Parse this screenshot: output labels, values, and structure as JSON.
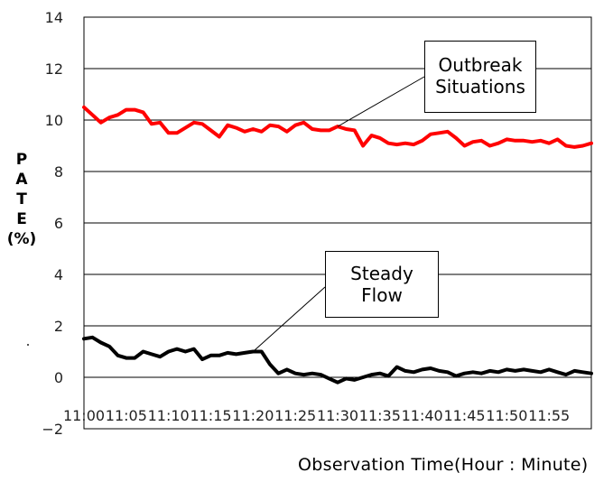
{
  "chart_data": {
    "type": "line",
    "xlabel": "Observation  Time(Hour : Minute)",
    "ylabel": [
      "P",
      "A",
      "T",
      "E",
      "(%)"
    ],
    "ylim": [
      -2,
      14
    ],
    "yticks": [
      -2,
      0,
      2,
      4,
      6,
      8,
      10,
      12,
      14
    ],
    "xlim": [
      0,
      60
    ],
    "xticks": [
      {
        "x": 0,
        "label": "11:00"
      },
      {
        "x": 5,
        "label": "11:05"
      },
      {
        "x": 10,
        "label": "11:10"
      },
      {
        "x": 15,
        "label": "11:15"
      },
      {
        "x": 20,
        "label": "11:20"
      },
      {
        "x": 25,
        "label": "11:25"
      },
      {
        "x": 30,
        "label": "11:30"
      },
      {
        "x": 35,
        "label": "11:35"
      },
      {
        "x": 40,
        "label": "11:40"
      },
      {
        "x": 45,
        "label": "11:45"
      },
      {
        "x": 50,
        "label": "11:50"
      },
      {
        "x": 55,
        "label": "11:55"
      }
    ],
    "grid": "horizontal",
    "series": [
      {
        "name": "Outbreak Situations",
        "color": "#ff0000",
        "x": [
          0,
          1,
          2,
          3,
          4,
          5,
          6,
          7,
          8,
          9,
          10,
          11,
          12,
          13,
          14,
          15,
          16,
          17,
          18,
          19,
          20,
          21,
          22,
          23,
          24,
          25,
          26,
          27,
          28,
          29,
          30,
          31,
          32,
          33,
          34,
          35,
          36,
          37,
          38,
          39,
          40,
          41,
          42,
          43,
          44,
          45,
          46,
          47,
          48,
          49,
          50,
          51,
          52,
          53,
          54,
          55,
          56,
          57,
          58,
          59,
          60
        ],
        "values": [
          10.5,
          10.2,
          9.9,
          10.1,
          10.2,
          10.4,
          10.4,
          10.3,
          9.85,
          9.9,
          9.5,
          9.5,
          9.7,
          9.9,
          9.85,
          9.6,
          9.35,
          9.8,
          9.7,
          9.55,
          9.65,
          9.55,
          9.8,
          9.75,
          9.55,
          9.8,
          9.9,
          9.65,
          9.6,
          9.6,
          9.75,
          9.65,
          9.6,
          9.0,
          9.4,
          9.3,
          9.1,
          9.05,
          9.1,
          9.05,
          9.2,
          9.45,
          9.5,
          9.55,
          9.3,
          9.0,
          9.15,
          9.2,
          9.0,
          9.1,
          9.25,
          9.2,
          9.2,
          9.15,
          9.2,
          9.1,
          9.25,
          9.0,
          8.95,
          9.0,
          9.1
        ]
      },
      {
        "name": "Steady Flow",
        "color": "#000000",
        "x": [
          0,
          1,
          2,
          3,
          4,
          5,
          6,
          7,
          8,
          9,
          10,
          11,
          12,
          13,
          14,
          15,
          16,
          17,
          18,
          19,
          20,
          21,
          22,
          23,
          24,
          25,
          26,
          27,
          28,
          29,
          30,
          31,
          32,
          33,
          34,
          35,
          36,
          37,
          38,
          39,
          40,
          41,
          42,
          43,
          44,
          45,
          46,
          47,
          48,
          49,
          50,
          51,
          52,
          53,
          54,
          55,
          56,
          57,
          58,
          59,
          60
        ],
        "values": [
          1.5,
          1.55,
          1.35,
          1.2,
          0.85,
          0.75,
          0.75,
          1.0,
          0.9,
          0.8,
          1.0,
          1.1,
          1.0,
          1.1,
          0.7,
          0.85,
          0.85,
          0.95,
          0.9,
          0.95,
          1.0,
          1.0,
          0.5,
          0.15,
          0.3,
          0.15,
          0.1,
          0.15,
          0.1,
          -0.05,
          -0.2,
          -0.05,
          -0.1,
          0.0,
          0.1,
          0.15,
          0.05,
          0.4,
          0.25,
          0.2,
          0.3,
          0.35,
          0.25,
          0.2,
          0.05,
          0.15,
          0.2,
          0.15,
          0.25,
          0.2,
          0.3,
          0.25,
          0.3,
          0.25,
          0.2,
          0.3,
          0.2,
          0.1,
          0.25,
          0.2,
          0.15
        ]
      }
    ],
    "annotations": [
      {
        "lines": [
          "Outbreak",
          "Situations"
        ],
        "target_series": "Outbreak Situations"
      },
      {
        "lines": [
          "Steady",
          "Flow"
        ],
        "target_series": "Steady Flow"
      }
    ]
  }
}
